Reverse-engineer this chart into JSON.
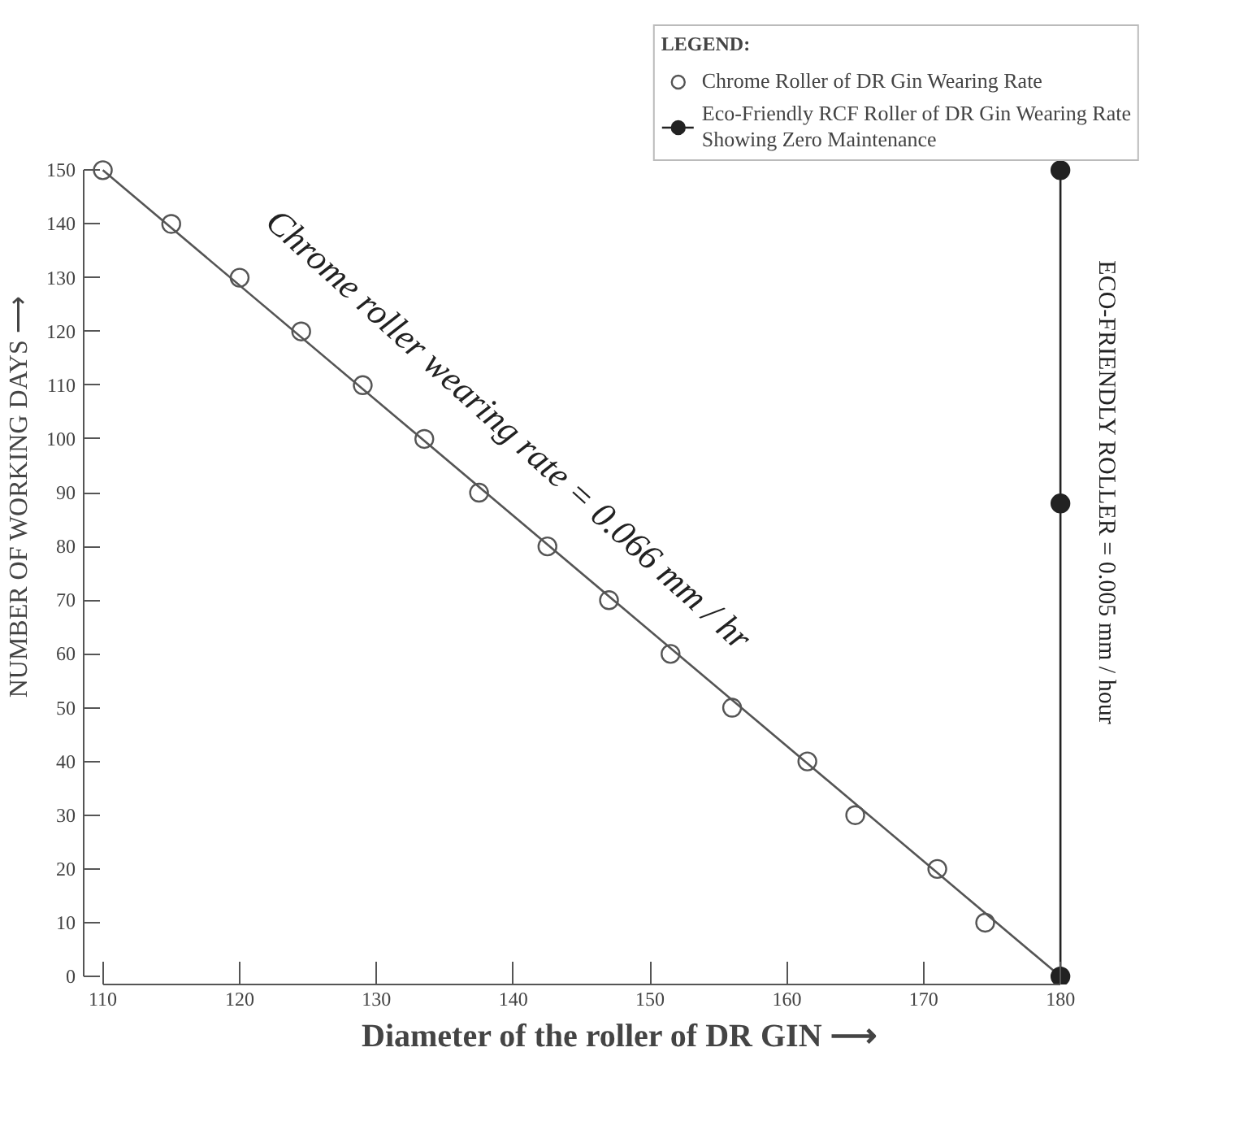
{
  "chart_data": {
    "type": "scatter",
    "xlabel": "Diameter of the roller of DR GIN ⟶",
    "ylabel": "NUMBER OF WORKING DAYS ⟶",
    "legend_title": "LEGEND:",
    "xlim": [
      110,
      180
    ],
    "xticks": [
      110,
      120,
      130,
      140,
      150,
      160,
      170,
      180
    ],
    "ylim": [
      0,
      150
    ],
    "yticks": [
      0,
      10,
      20,
      30,
      40,
      50,
      60,
      70,
      80,
      90,
      100,
      110,
      120,
      130,
      140,
      150
    ],
    "grid": false,
    "legend": "top right",
    "marker": "circle",
    "series": [
      {
        "name": "Chrome Roller of DR Gin Wearing Rate",
        "color": "#555555",
        "x": [
          110,
          115,
          120,
          124.5,
          129,
          133.5,
          137.5,
          142.5,
          147,
          151.5,
          156,
          161.5,
          165,
          171,
          174.5
        ],
        "values": [
          150,
          140,
          130,
          120,
          110,
          100,
          90,
          80,
          70,
          60,
          50,
          40,
          30,
          20,
          10
        ]
      },
      {
        "type": "line",
        "marker": "none",
        "color": "#555555",
        "x": [
          110,
          180
        ],
        "values": [
          150,
          0
        ]
      },
      {
        "name": "Eco-Friendly RCF Roller of DR Gin Wearing Rate\nShowing Zero Maintenance",
        "type": "line",
        "marker": "circle",
        "color": "#222222",
        "x": [
          180,
          180,
          180
        ],
        "values": [
          0,
          88,
          150
        ]
      }
    ],
    "annotations": [
      "Chrome roller wearing rate = 0.066 mm / hr",
      "ECO-FRIENDLY ROLLER = 0.005 mm / hour"
    ]
  }
}
